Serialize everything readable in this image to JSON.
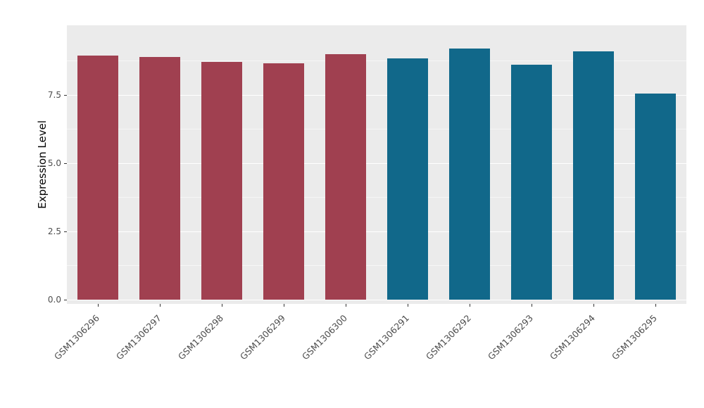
{
  "chart_data": {
    "type": "bar",
    "title": "",
    "xlabel": "",
    "ylabel": "Expression Level",
    "categories": [
      "GSM1306296",
      "GSM1306297",
      "GSM1306298",
      "GSM1306299",
      "GSM1306300",
      "GSM1306291",
      "GSM1306292",
      "GSM1306293",
      "GSM1306294",
      "GSM1306295"
    ],
    "values": [
      8.95,
      8.9,
      8.7,
      8.65,
      9.0,
      8.85,
      9.2,
      8.6,
      9.1,
      7.55
    ],
    "bar_colors": [
      "#A04050",
      "#A04050",
      "#A04050",
      "#A04050",
      "#A04050",
      "#11688A",
      "#11688A",
      "#11688A",
      "#11688A",
      "#11688A"
    ],
    "group_colors": {
      "maroon": "#A04050",
      "teal": "#11688A"
    },
    "y_ticks": [
      {
        "label": "0.0",
        "value": 0
      },
      {
        "label": "2.5",
        "value": 2.5
      },
      {
        "label": "5.0",
        "value": 5
      },
      {
        "label": "7.5",
        "value": 7.5
      }
    ],
    "y_minor_ticks": [
      1.25,
      3.75,
      6.25,
      8.75
    ],
    "ylim": [
      0,
      10
    ],
    "grid": "on",
    "legend": "none",
    "panel_bg": "#EBEBEB",
    "grid_color": "#FFFFFF",
    "tick_label_color": "#4D4D4D"
  }
}
